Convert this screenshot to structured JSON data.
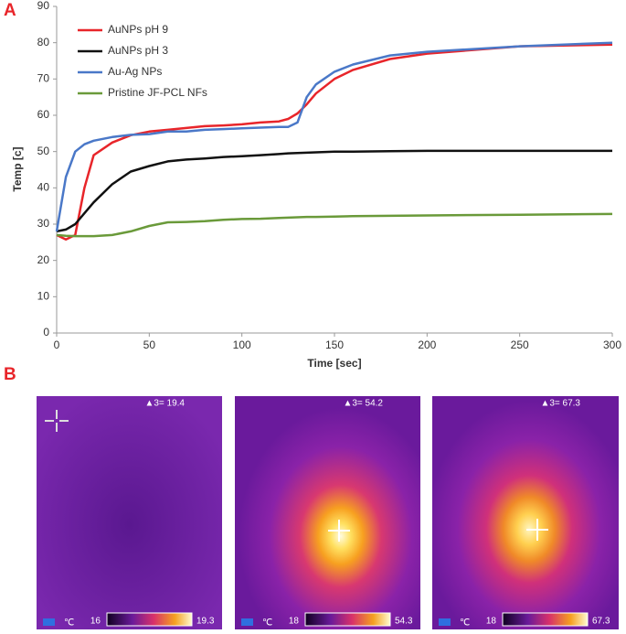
{
  "panel_labels": [
    "A",
    "B"
  ],
  "chart_data": {
    "type": "line",
    "xlabel": "Time [sec]",
    "ylabel": "Temp [c]",
    "x": [
      0,
      5,
      10,
      15,
      20,
      30,
      40,
      50,
      60,
      70,
      80,
      90,
      100,
      110,
      120,
      125,
      130,
      135,
      140,
      150,
      160,
      180,
      200,
      250,
      300
    ],
    "series": [
      {
        "name": "AuNPs pH 9",
        "color": "#e8252a",
        "values": [
          27,
          25.8,
          27,
          40,
          49,
          52.5,
          54.5,
          55.5,
          56,
          56.5,
          57,
          57.2,
          57.5,
          58,
          58.3,
          59,
          60.5,
          63,
          66,
          70,
          72.5,
          75.5,
          77,
          79,
          79.5
        ]
      },
      {
        "name": "AuNPs pH 3",
        "color": "#111111",
        "values": [
          28,
          28.5,
          30,
          33,
          36,
          41,
          44.5,
          46,
          47.3,
          47.8,
          48.1,
          48.5,
          48.7,
          49,
          49.3,
          49.5,
          49.6,
          49.7,
          49.8,
          50,
          50,
          50.1,
          50.2,
          50.2,
          50.2
        ]
      },
      {
        "name": "Au-Ag NPs",
        "color": "#4a78c8",
        "values": [
          28,
          43,
          50,
          52,
          53,
          54,
          54.6,
          54.8,
          55.5,
          55.5,
          56,
          56.2,
          56.4,
          56.6,
          56.8,
          56.8,
          58,
          65,
          68.5,
          72,
          74,
          76.5,
          77.5,
          79,
          80
        ]
      },
      {
        "name": "Pristine JF-PCL NFs",
        "color": "#6a9a3a",
        "values": [
          27,
          26.8,
          26.7,
          26.7,
          26.7,
          27,
          28,
          29.5,
          30.5,
          30.6,
          30.8,
          31.2,
          31.4,
          31.5,
          31.7,
          31.8,
          31.9,
          32,
          32,
          32.1,
          32.2,
          32.3,
          32.4,
          32.6,
          32.8
        ]
      }
    ],
    "xlim": [
      0,
      300
    ],
    "xticks": [
      0,
      50,
      100,
      150,
      200,
      250,
      300
    ],
    "ylim": [
      0,
      90
    ],
    "yticks": [
      0,
      10,
      20,
      30,
      40,
      50,
      60,
      70,
      80,
      90
    ],
    "legend": "upper-left"
  },
  "thermal_images": [
    {
      "reading": "▲3= 19.4",
      "scale_min": "16",
      "scale_max": "19.3",
      "unit": "℃"
    },
    {
      "reading": "▲3= 54.2",
      "scale_min": "18",
      "scale_max": "54.3",
      "unit": "℃"
    },
    {
      "reading": "▲3= 67.3",
      "scale_min": "18",
      "scale_max": "67.3",
      "unit": "℃"
    }
  ]
}
